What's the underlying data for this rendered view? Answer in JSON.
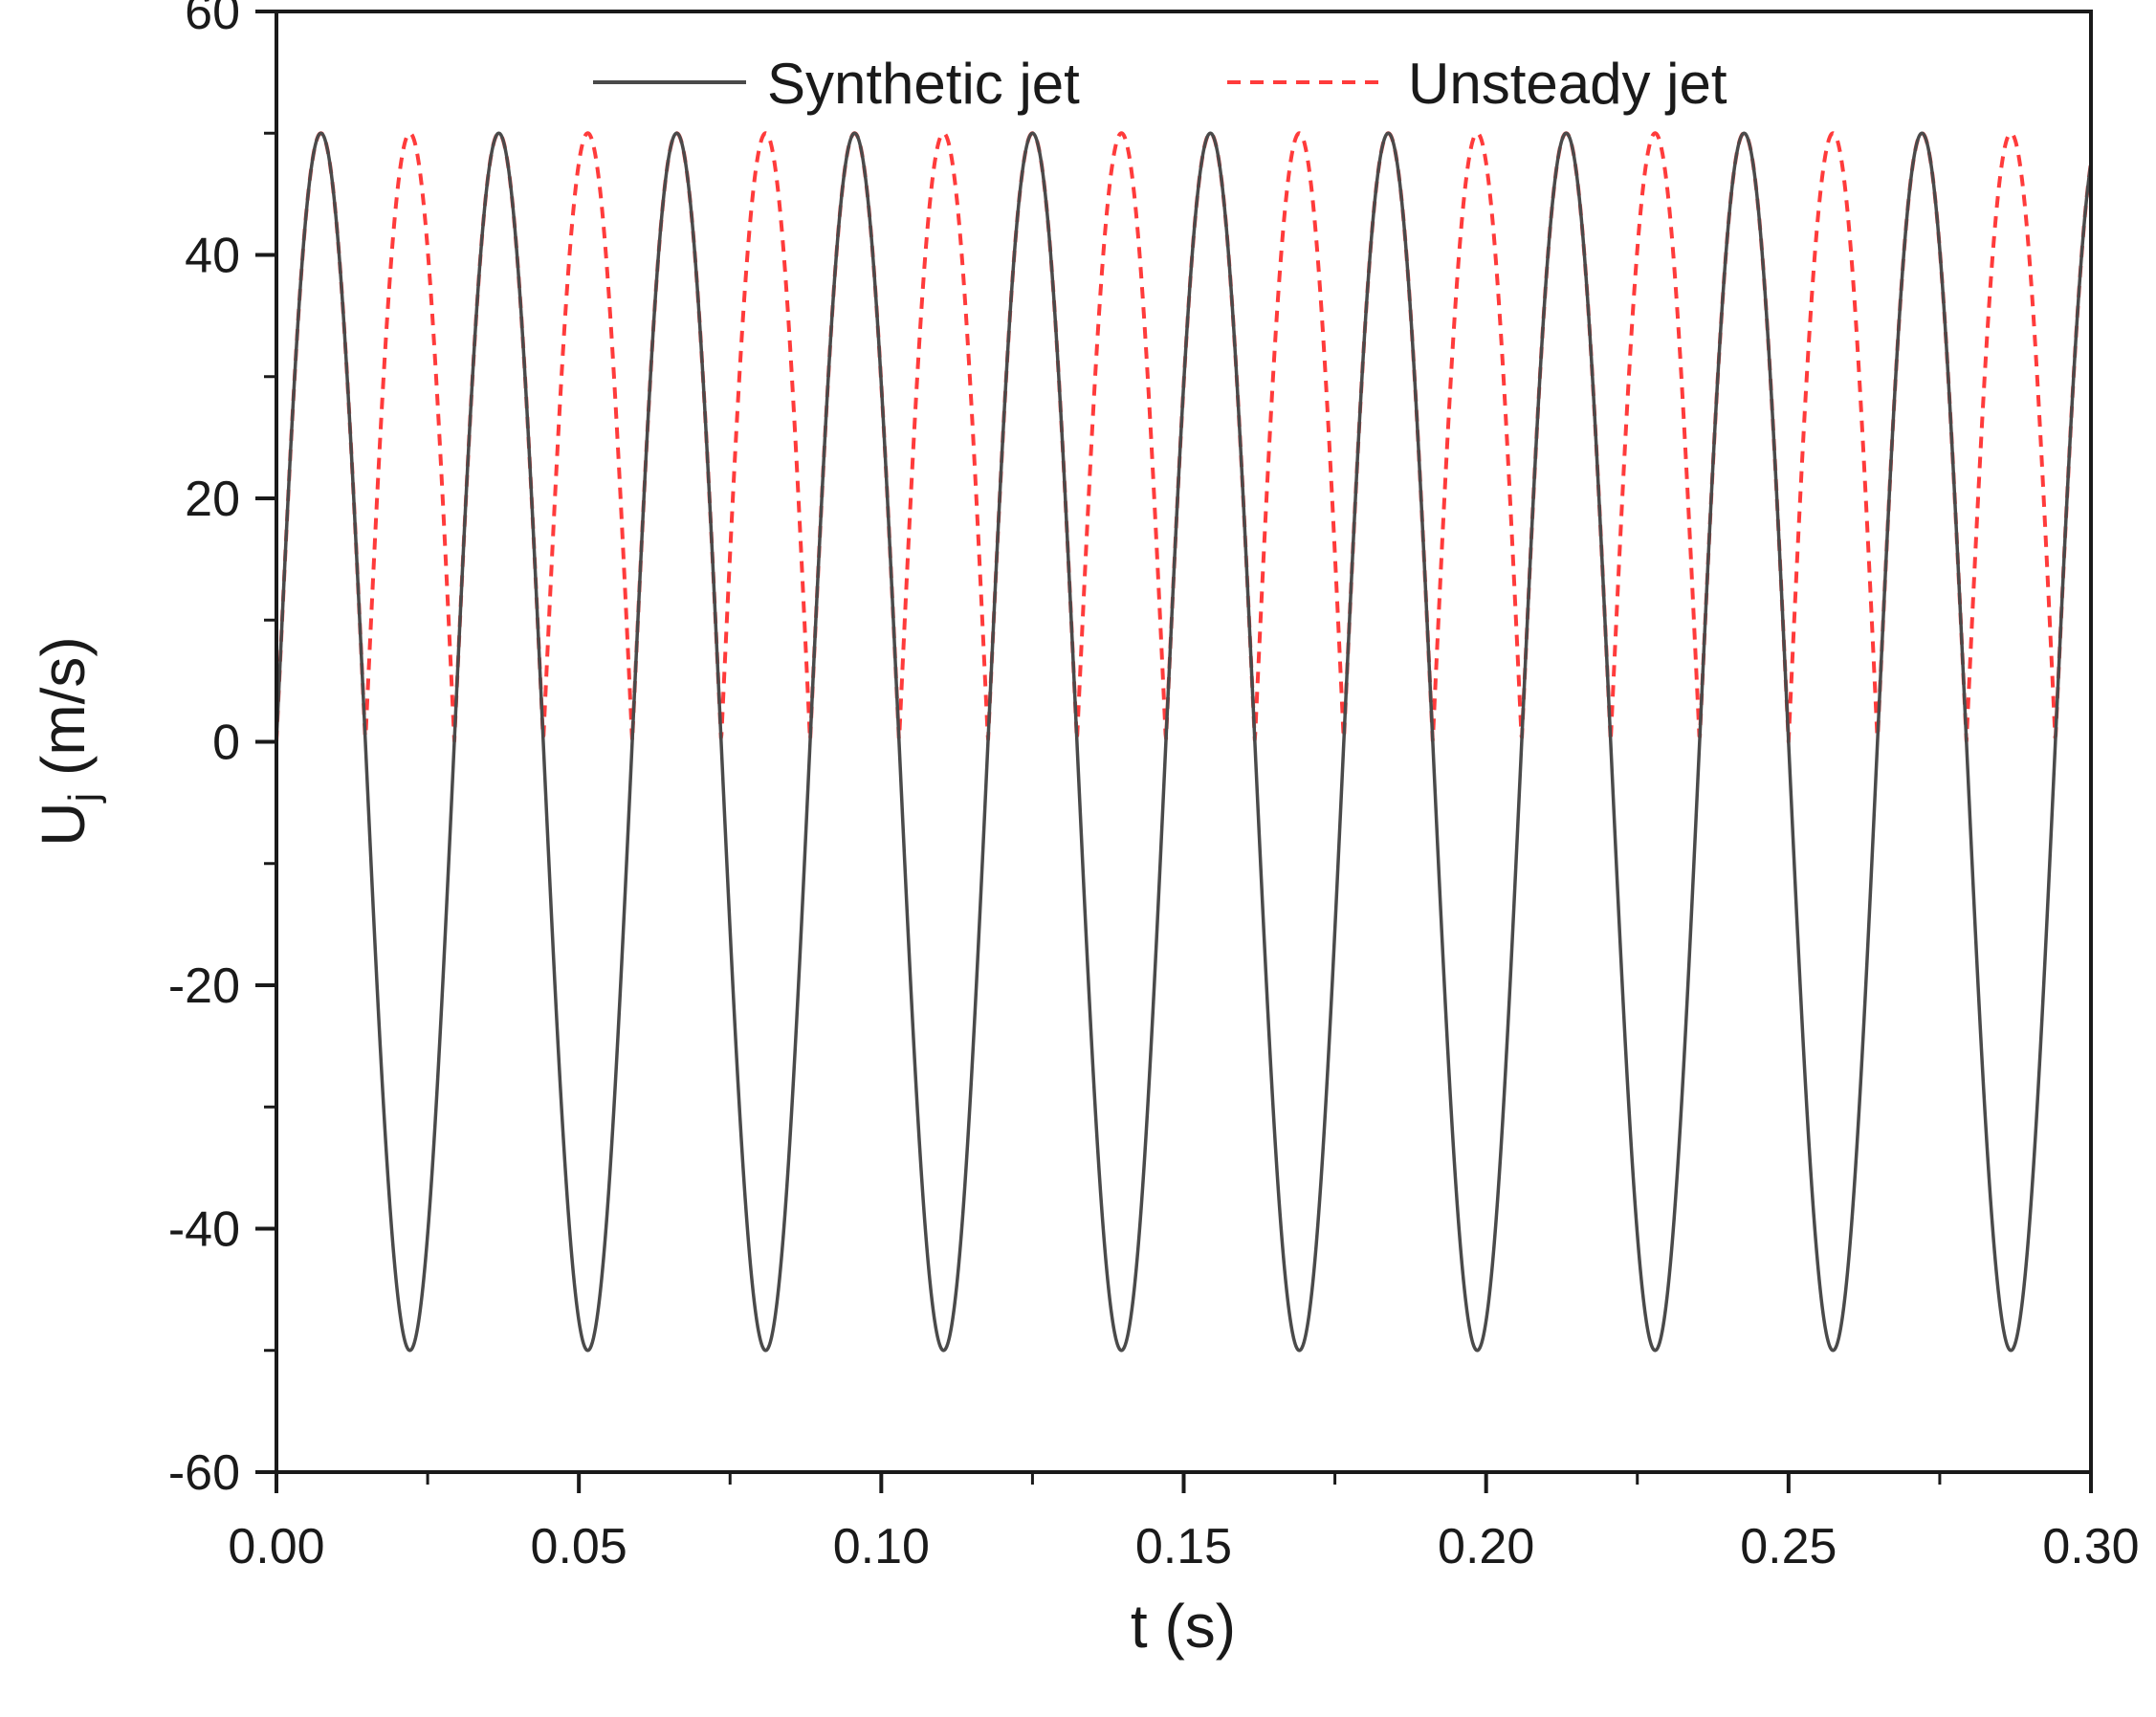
{
  "chart_data": {
    "type": "line",
    "title": "",
    "xlabel": "t (s)",
    "ylabel_main": "U",
    "ylabel_sub": "j",
    "ylabel_unit": " (m/s)",
    "xlim": [
      0,
      0.3
    ],
    "ylim": [
      -60,
      60
    ],
    "x_ticks": [
      0,
      0.05,
      0.1,
      0.15,
      0.2,
      0.25,
      0.3
    ],
    "x_tick_labels": [
      "0.00",
      "0.05",
      "0.10",
      "0.15",
      "0.20",
      "0.25",
      "0.30"
    ],
    "y_ticks": [
      -60,
      -40,
      -20,
      0,
      20,
      40,
      60
    ],
    "y_tick_labels": [
      "-60",
      "-40",
      "-20",
      "0",
      "20",
      "40",
      "60"
    ],
    "grid": false,
    "legend_position": "top",
    "series": [
      {
        "name": "Synthetic jet",
        "style": "solid",
        "color": "#4a4a4a",
        "amplitude": 50,
        "frequency_hz": 34,
        "form": "U = 50 sin(2π·34·t)"
      },
      {
        "name": "Unsteady jet",
        "style": "dashed",
        "color": "#ff3b3b",
        "amplitude": 50,
        "frequency_hz": 34,
        "form": "U = 50 |sin(2π·34·t)|"
      }
    ]
  }
}
